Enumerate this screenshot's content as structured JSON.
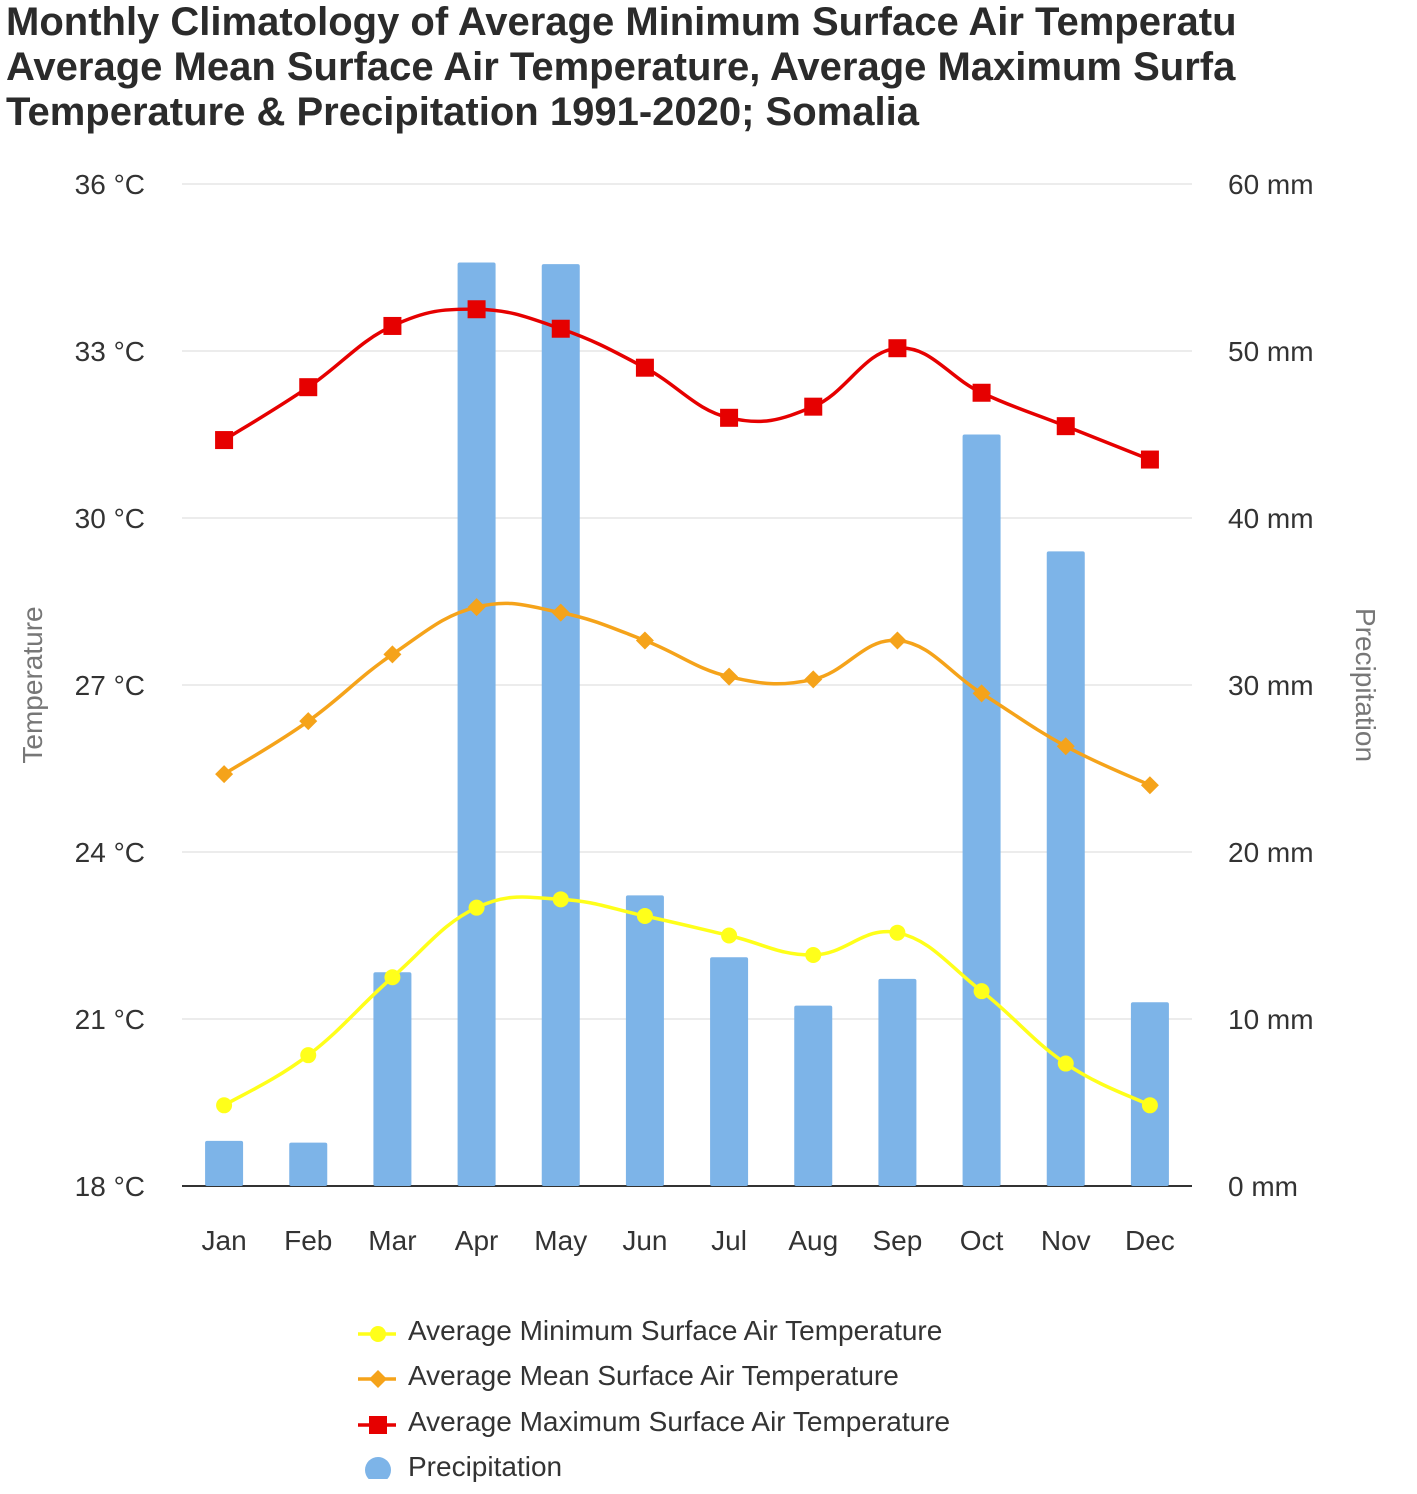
{
  "title_lines": [
    "Monthly Climatology of Average Minimum Surface Air Temperatu",
    "Average Mean Surface Air Temperature, Average Maximum Surfa",
    "Temperature & Precipitation 1991-2020; Somalia"
  ],
  "colors": {
    "min_temp": "#ffff1a",
    "mean_temp": "#f5a31a",
    "max_temp": "#e60000",
    "precip": "#7db4e8",
    "grid": "#e6e6e6",
    "axis": "#333333"
  },
  "chart_data": {
    "type": "bar+line",
    "categories": [
      "Jan",
      "Feb",
      "Mar",
      "Apr",
      "May",
      "Jun",
      "Jul",
      "Aug",
      "Sep",
      "Oct",
      "Nov",
      "Dec"
    ],
    "left_axis": {
      "label": "Temperature",
      "range": [
        18,
        36
      ],
      "ticks": [
        "18 °C",
        "21 °C",
        "24 °C",
        "27 °C",
        "30 °C",
        "33 °C",
        "36 °C"
      ]
    },
    "right_axis": {
      "label": "Precipitation",
      "range": [
        0,
        60
      ],
      "ticks": [
        "0 mm",
        "10 mm",
        "20 mm",
        "30 mm",
        "40 mm",
        "50 mm",
        "60 mm"
      ]
    },
    "series": [
      {
        "name": "Average Minimum Surface Air Temperature",
        "type": "line",
        "axis": "left",
        "marker": "circle",
        "color": "#ffff1a",
        "values": [
          19.45,
          20.35,
          21.75,
          23.0,
          23.15,
          22.85,
          22.5,
          22.15,
          22.55,
          21.5,
          20.2,
          19.45
        ]
      },
      {
        "name": "Average Mean Surface Air Temperature",
        "type": "line",
        "axis": "left",
        "marker": "diamond",
        "color": "#f5a31a",
        "values": [
          25.4,
          26.35,
          27.55,
          28.4,
          28.3,
          27.8,
          27.15,
          27.1,
          27.8,
          26.85,
          25.9,
          25.2
        ]
      },
      {
        "name": "Average Maximum Surface Air Temperature",
        "type": "line",
        "axis": "left",
        "marker": "square",
        "color": "#e60000",
        "values": [
          31.4,
          32.35,
          33.45,
          33.75,
          33.4,
          32.7,
          31.8,
          32.0,
          33.05,
          32.25,
          31.65,
          31.05
        ]
      },
      {
        "name": "Precipitation",
        "type": "bar",
        "axis": "right",
        "marker": "circle",
        "color": "#7db4e8",
        "values": [
          2.7,
          2.6,
          12.8,
          55.3,
          55.2,
          17.4,
          13.7,
          10.8,
          12.4,
          45.0,
          38.0,
          11.0
        ]
      }
    ],
    "legend_position": "bottom",
    "grid": true
  }
}
